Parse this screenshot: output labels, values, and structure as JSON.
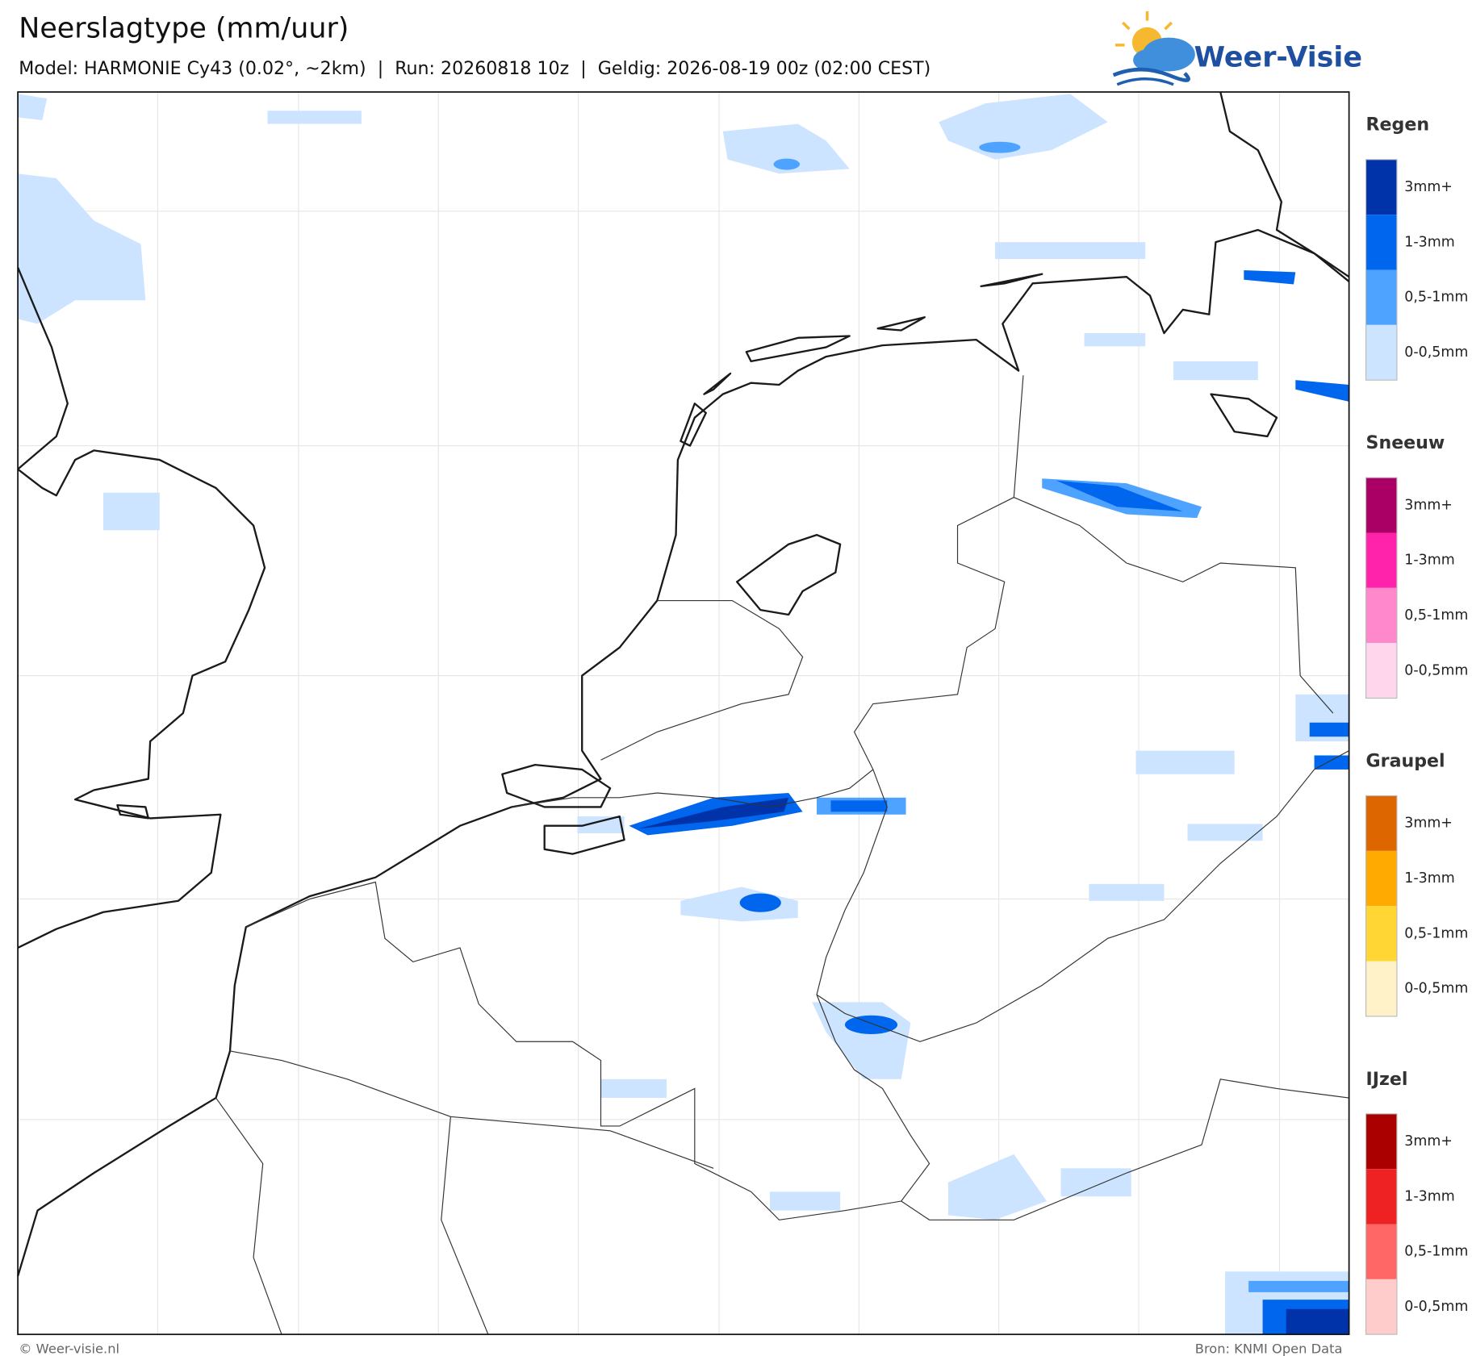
{
  "header": {
    "title": "Neerslagtype (mm/uur)",
    "subtitle": "Model: HARMONIE Cy43 (0.02°, ~2km)  |  Run: 20260818 10z  |  Geldig: 2026-08-19 00z (02:00 CEST)"
  },
  "logo": {
    "name": "Weer-Visie"
  },
  "legend": {
    "groups": [
      {
        "name": "Regen",
        "items": [
          {
            "label": "3mm+",
            "color": "#0033aa"
          },
          {
            "label": "1-3mm",
            "color": "#0066ee"
          },
          {
            "label": "0,5-1mm",
            "color": "#4da3ff"
          },
          {
            "label": "0-0,5mm",
            "color": "#cce4ff"
          }
        ]
      },
      {
        "name": "Sneeuw",
        "items": [
          {
            "label": "3mm+",
            "color": "#aa0066"
          },
          {
            "label": "1-3mm",
            "color": "#ff22aa"
          },
          {
            "label": "0,5-1mm",
            "color": "#ff88cc"
          },
          {
            "label": "0-0,5mm",
            "color": "#ffd6ec"
          }
        ]
      },
      {
        "name": "Graupel",
        "items": [
          {
            "label": "3mm+",
            "color": "#dd6600"
          },
          {
            "label": "1-3mm",
            "color": "#ffaa00"
          },
          {
            "label": "0,5-1mm",
            "color": "#ffd633"
          },
          {
            "label": "0-0,5mm",
            "color": "#fff2c8"
          }
        ]
      },
      {
        "name": "IJzel",
        "items": [
          {
            "label": "3mm+",
            "color": "#aa0000"
          },
          {
            "label": "1-3mm",
            "color": "#ee2222"
          },
          {
            "label": "0,5-1mm",
            "color": "#ff6666"
          },
          {
            "label": "0-0,5mm",
            "color": "#ffcccc"
          }
        ]
      }
    ]
  },
  "footer": {
    "copyright": "© Weer-visie.nl",
    "source": "Bron: KNMI Open Data"
  }
}
